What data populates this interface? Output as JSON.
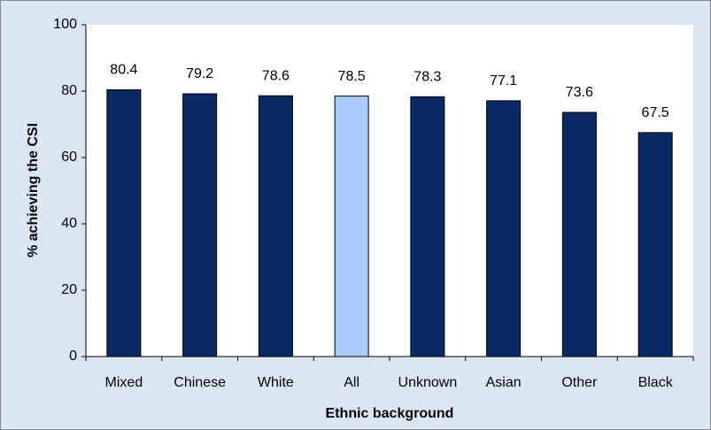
{
  "chart_data": {
    "type": "bar",
    "categories": [
      "Mixed",
      "Chinese",
      "White",
      "All",
      "Unknown",
      "Asian",
      "Other",
      "Black"
    ],
    "values": [
      80.4,
      79.2,
      78.6,
      78.5,
      78.3,
      77.1,
      73.6,
      67.5
    ],
    "colors": [
      "#0a2a66",
      "#0a2a66",
      "#0a2a66",
      "#a8cdfb",
      "#0a2a66",
      "#0a2a66",
      "#0a2a66",
      "#0a2a66"
    ],
    "x_label": "Ethnic background",
    "y_label": "% achieving the CSI",
    "ylim": [
      0,
      100
    ],
    "yticks": [
      0,
      20,
      40,
      60,
      80,
      100
    ],
    "grid": false
  }
}
